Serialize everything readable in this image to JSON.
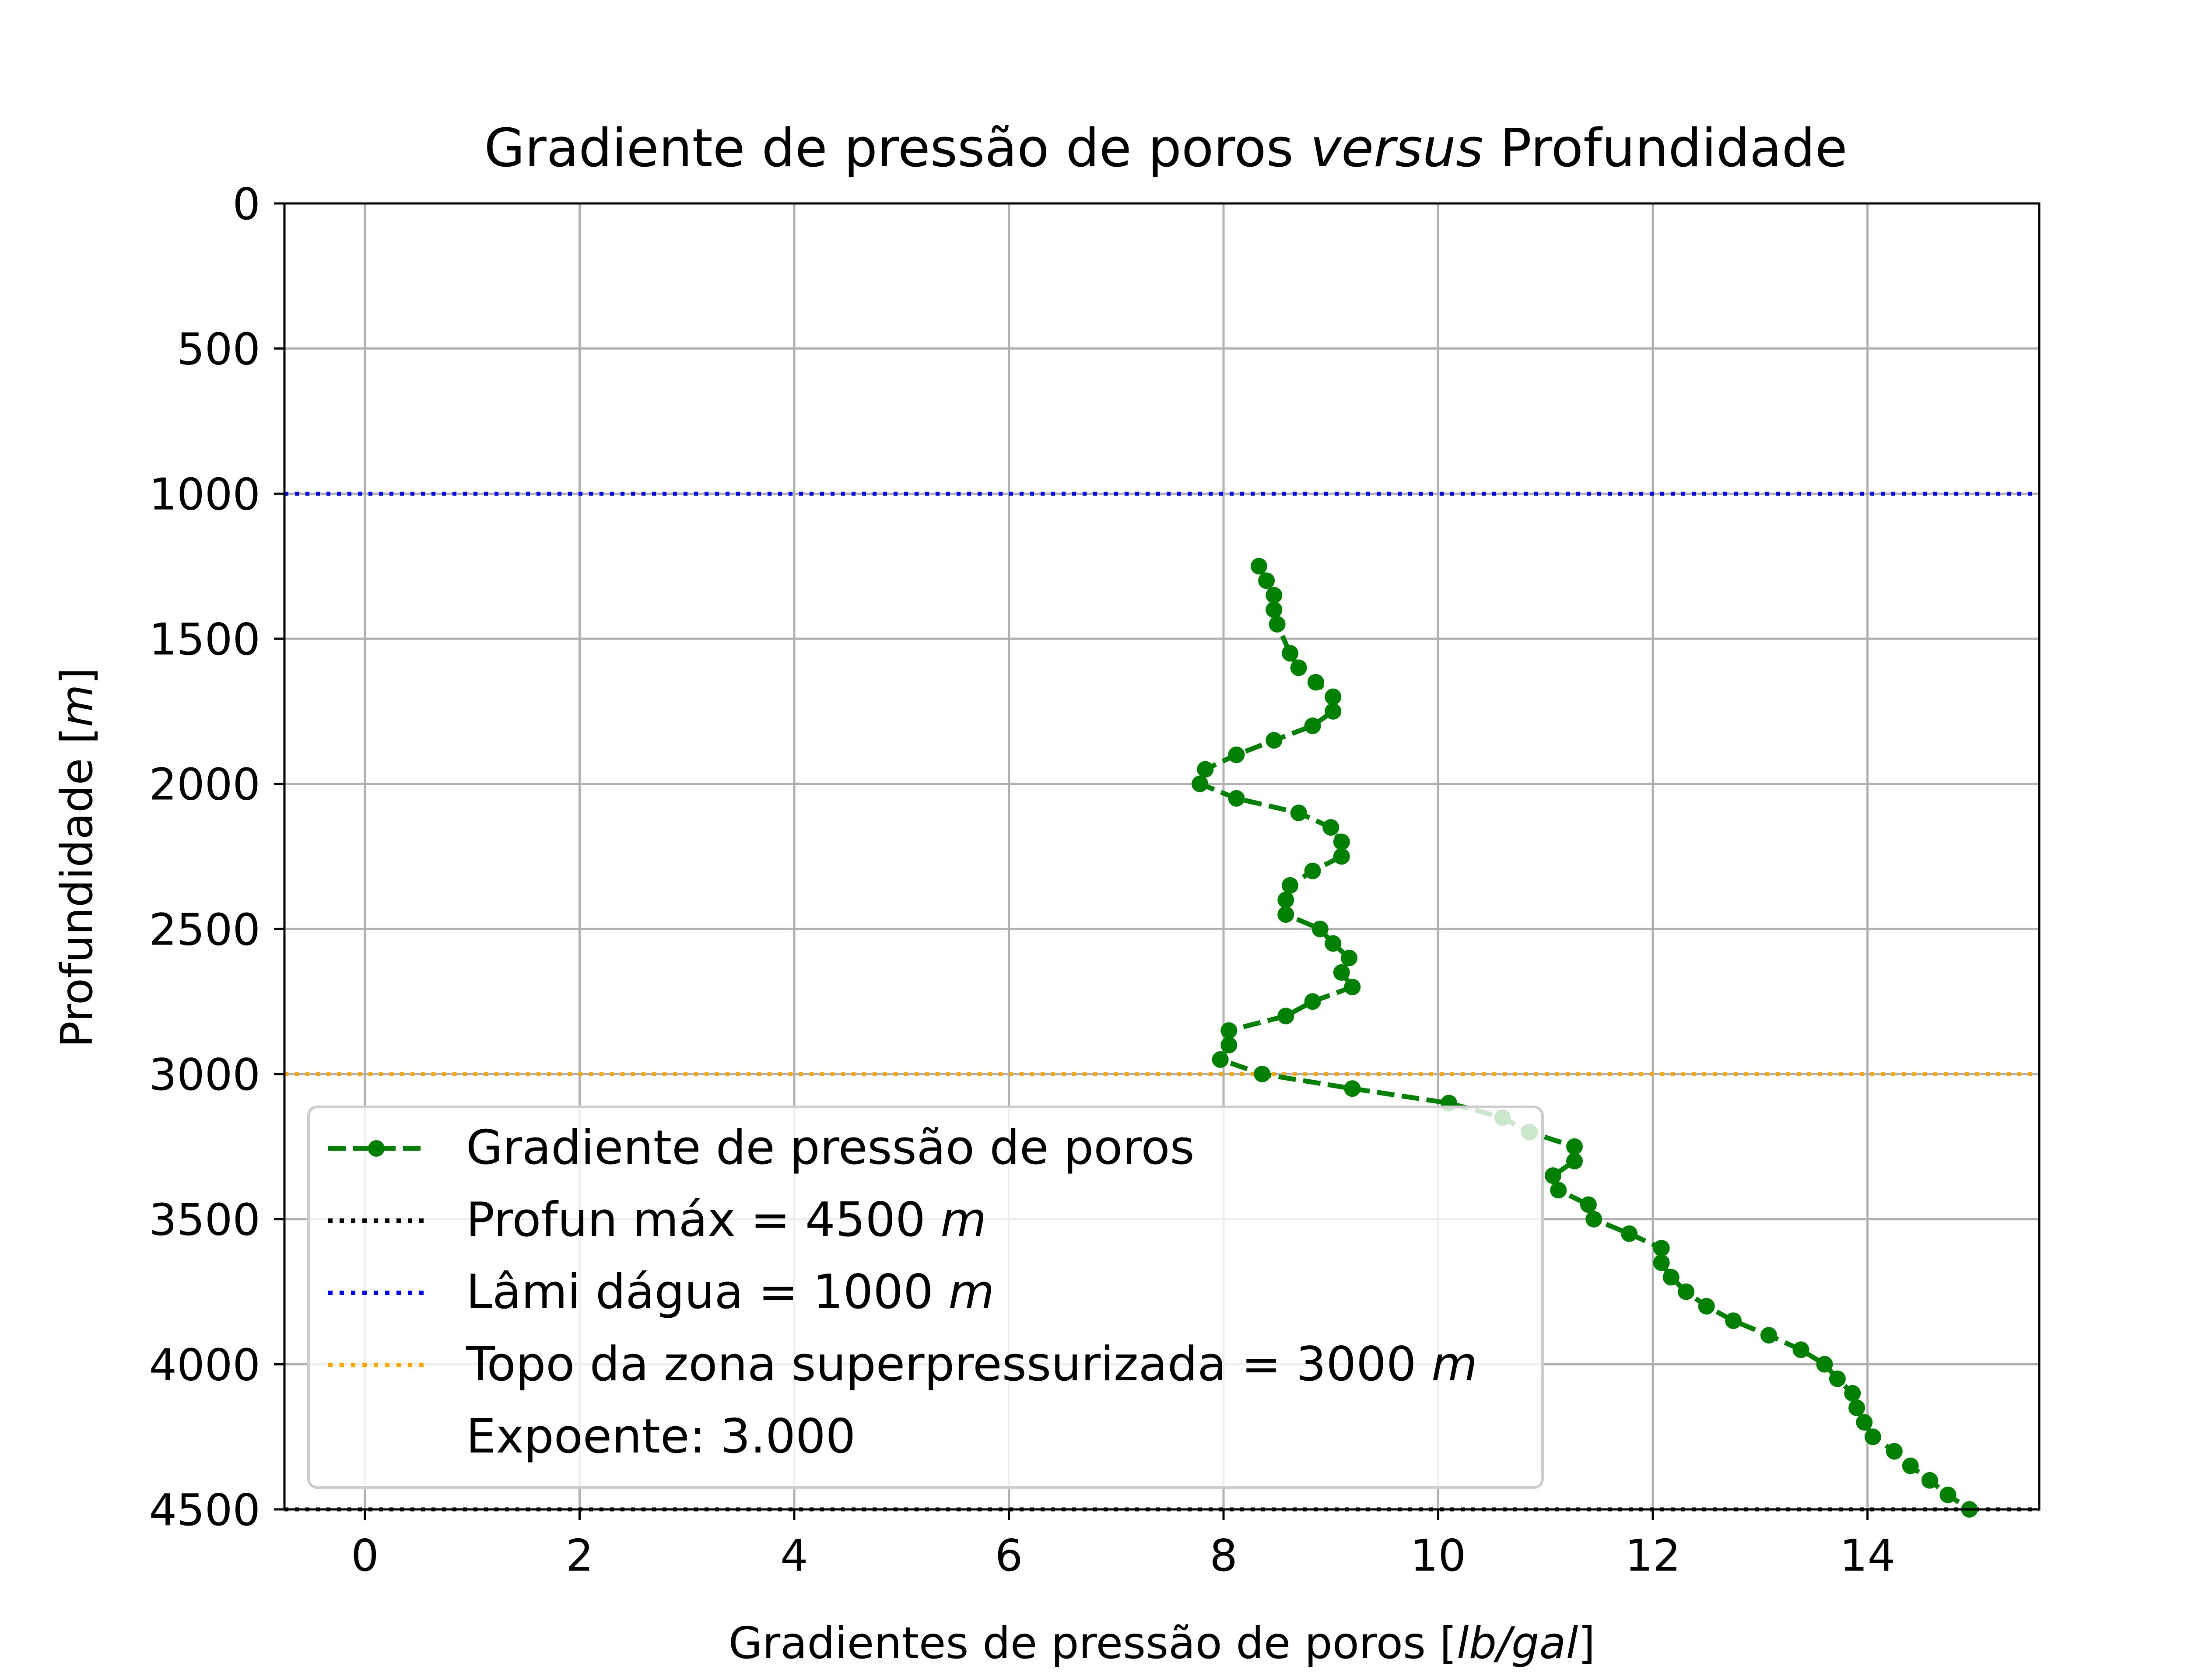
{
  "chart_data": {
    "type": "line",
    "title": "Gradiente de pressão de poros",
    "title_italic": "versus",
    "title_tail": "Profundidade",
    "xlabel": "Gradientes de pressão de poros [",
    "xlabel_unit": "lb/gal",
    "xlabel_close": "]",
    "ylabel": "Profundidade [",
    "ylabel_unit": "m",
    "ylabel_close": "]",
    "xlim": [
      -0.75,
      15.6
    ],
    "ylim": [
      4500,
      0
    ],
    "y_inverted": true,
    "grid": true,
    "xticks": [
      0,
      2,
      4,
      6,
      8,
      10,
      12,
      14
    ],
    "xtick_labels": [
      "0",
      "2",
      "4",
      "6",
      "8",
      "10",
      "12",
      "14"
    ],
    "yticks": [
      0,
      500,
      1000,
      1500,
      2000,
      2500,
      3000,
      3500,
      4000,
      4500
    ],
    "ytick_labels": [
      "0",
      "500",
      "1000",
      "1500",
      "2000",
      "2500",
      "3000",
      "3500",
      "4000",
      "4500"
    ],
    "series": [
      {
        "name": "Gradiente de pressão de poros",
        "color": "#008000",
        "linestyle": "dashed",
        "marker": "circle",
        "points": [
          [
            8.33,
            1250
          ],
          [
            8.4,
            1300
          ],
          [
            8.47,
            1350
          ],
          [
            8.47,
            1400
          ],
          [
            8.5,
            1450
          ],
          [
            8.62,
            1550
          ],
          [
            8.7,
            1600
          ],
          [
            8.86,
            1650
          ],
          [
            9.02,
            1700
          ],
          [
            9.02,
            1750
          ],
          [
            8.83,
            1800
          ],
          [
            8.47,
            1850
          ],
          [
            8.12,
            1900
          ],
          [
            7.83,
            1950
          ],
          [
            7.78,
            2000
          ],
          [
            8.12,
            2050
          ],
          [
            8.7,
            2100
          ],
          [
            9.0,
            2150
          ],
          [
            9.1,
            2200
          ],
          [
            9.1,
            2250
          ],
          [
            8.83,
            2300
          ],
          [
            8.62,
            2350
          ],
          [
            8.58,
            2400
          ],
          [
            8.58,
            2450
          ],
          [
            8.9,
            2500
          ],
          [
            9.02,
            2550
          ],
          [
            9.17,
            2600
          ],
          [
            9.1,
            2650
          ],
          [
            9.2,
            2700
          ],
          [
            8.83,
            2750
          ],
          [
            8.58,
            2800
          ],
          [
            8.05,
            2850
          ],
          [
            8.05,
            2900
          ],
          [
            7.97,
            2950
          ],
          [
            8.36,
            3000
          ],
          [
            9.2,
            3050
          ],
          [
            10.1,
            3100
          ],
          [
            10.6,
            3150
          ],
          [
            10.85,
            3200
          ],
          [
            11.27,
            3250
          ],
          [
            11.27,
            3300
          ],
          [
            11.07,
            3350
          ],
          [
            11.12,
            3400
          ],
          [
            11.4,
            3450
          ],
          [
            11.45,
            3500
          ],
          [
            11.78,
            3550
          ],
          [
            12.08,
            3600
          ],
          [
            12.08,
            3650
          ],
          [
            12.17,
            3700
          ],
          [
            12.31,
            3750
          ],
          [
            12.5,
            3800
          ],
          [
            12.75,
            3850
          ],
          [
            13.08,
            3900
          ],
          [
            13.38,
            3950
          ],
          [
            13.6,
            4000
          ],
          [
            13.72,
            4050
          ],
          [
            13.86,
            4100
          ],
          [
            13.9,
            4150
          ],
          [
            13.97,
            4200
          ],
          [
            14.05,
            4250
          ],
          [
            14.25,
            4300
          ],
          [
            14.4,
            4350
          ],
          [
            14.58,
            4400
          ],
          [
            14.75,
            4450
          ],
          [
            14.95,
            4500
          ]
        ]
      }
    ],
    "hlines": [
      {
        "label": "Profun máx = 4500",
        "unit": "m",
        "y": 4500,
        "color": "#000000"
      },
      {
        "label": "Lâmi dágua = 1000",
        "unit": "m",
        "y": 1000,
        "color": "#0000ff"
      },
      {
        "label": "Topo da zona superpressurizada = 3000",
        "unit": "m",
        "y": 3000,
        "color": "#ffa500"
      }
    ],
    "legend_extra": "Expoente: 3.000",
    "legend_position": "lower-left"
  }
}
